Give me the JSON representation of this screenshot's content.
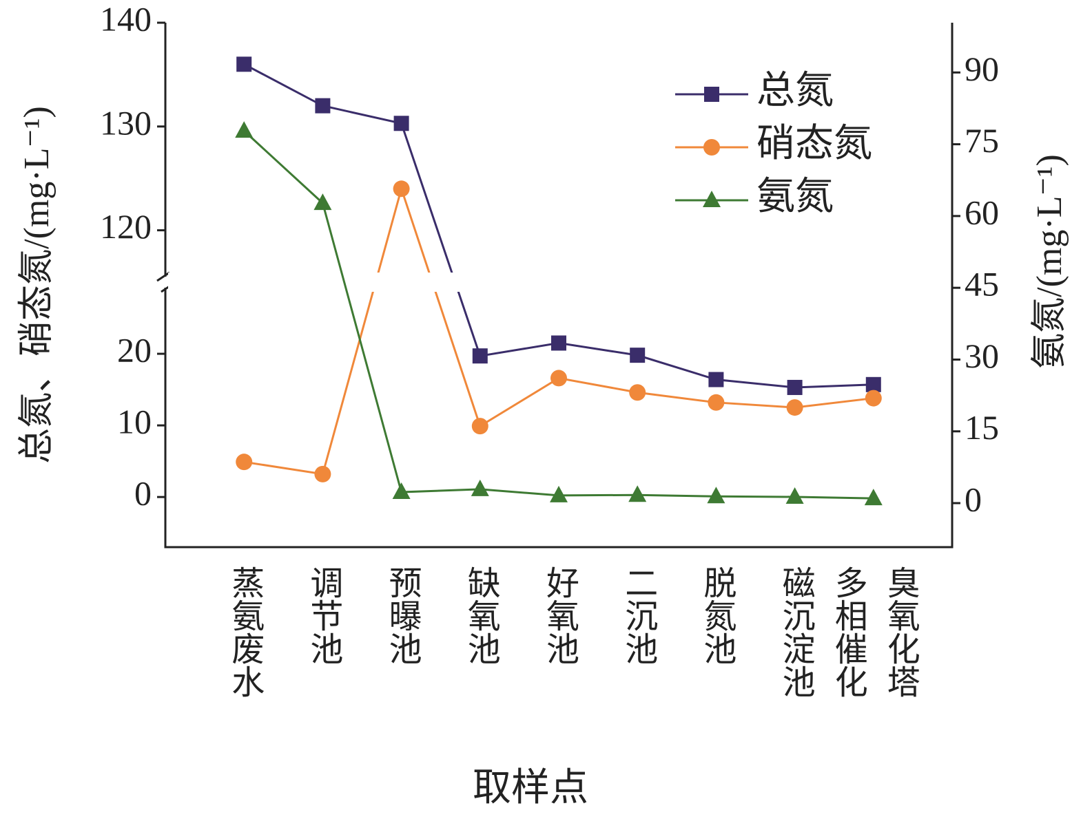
{
  "chart_data": {
    "type": "line",
    "x_label": "取样点",
    "y_label": "总氮、硝态氮/(mg·L⁻¹)",
    "y2_label": "氨氮/(mg·L⁻¹)",
    "categories": [
      "蒸氨废水",
      "调节池",
      "预曝池",
      "缺氧池",
      "好氧池",
      "二沉池",
      "脱氮池",
      "磁沉淀池",
      "多相催化\n臭氧化塔"
    ],
    "series": [
      {
        "name": "总氮",
        "color": "#3a2d6a",
        "marker": "square",
        "values": [
          136,
          132,
          130.3,
          19.7,
          21.5,
          19.8,
          16.4,
          15.3,
          15.7
        ]
      },
      {
        "name": "硝态氮",
        "color": "#f0883a",
        "marker": "circle",
        "values": [
          4.9,
          3.2,
          124,
          9.9,
          16.6,
          14.6,
          13.2,
          12.5,
          13.8
        ]
      },
      {
        "name": "氨氮",
        "color": "#3e7a33",
        "marker": "triangle",
        "axis": "y2",
        "values": [
          77.8,
          62.7,
          2.3,
          2.9,
          1.6,
          1.7,
          1.4,
          1.3,
          1.0
        ]
      }
    ],
    "ylim": [
      -7,
      140
    ],
    "y_break": [
      30,
      115
    ],
    "yticks": [
      0,
      10,
      20,
      120,
      130,
      140
    ],
    "y2lim": [
      -9.2,
      100.4
    ],
    "y2ticks": [
      0,
      15,
      30,
      45,
      60,
      75,
      90
    ],
    "legend": "upper right"
  }
}
